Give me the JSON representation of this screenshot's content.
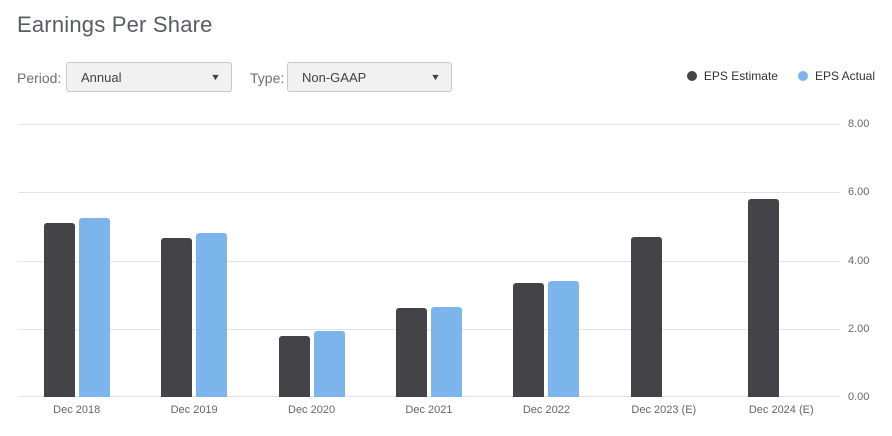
{
  "header": {
    "title": "Earnings Per Share"
  },
  "controls": {
    "period_label": "Period:",
    "period_value": "Annual",
    "type_label": "Type:",
    "type_value": "Non-GAAP",
    "dropdown_arrow": "▼"
  },
  "legend": [
    {
      "label": "EPS Estimate",
      "color": "#434348"
    },
    {
      "label": "EPS Actual",
      "color": "#7cb5ec"
    }
  ],
  "chart_data": {
    "type": "bar",
    "title": "Earnings Per Share",
    "categories": [
      "Dec 2018",
      "Dec 2019",
      "Dec 2020",
      "Dec 2021",
      "Dec 2022",
      "Dec 2023 (E)",
      "Dec 2024 (E)"
    ],
    "series": [
      {
        "name": "EPS Estimate",
        "color": "#434348",
        "values": [
          5.1,
          4.65,
          1.8,
          2.6,
          3.35,
          4.7,
          5.8
        ]
      },
      {
        "name": "EPS Actual",
        "color": "#7cb5ec",
        "values": [
          5.25,
          4.8,
          1.95,
          2.65,
          3.4,
          null,
          null
        ]
      }
    ],
    "xlabel": "",
    "ylabel": "",
    "ylim": [
      0,
      8
    ],
    "yticks": [
      "0.00",
      "2.00",
      "4.00",
      "6.00",
      "8.00"
    ],
    "grid": true,
    "legend_position": "top-right"
  }
}
